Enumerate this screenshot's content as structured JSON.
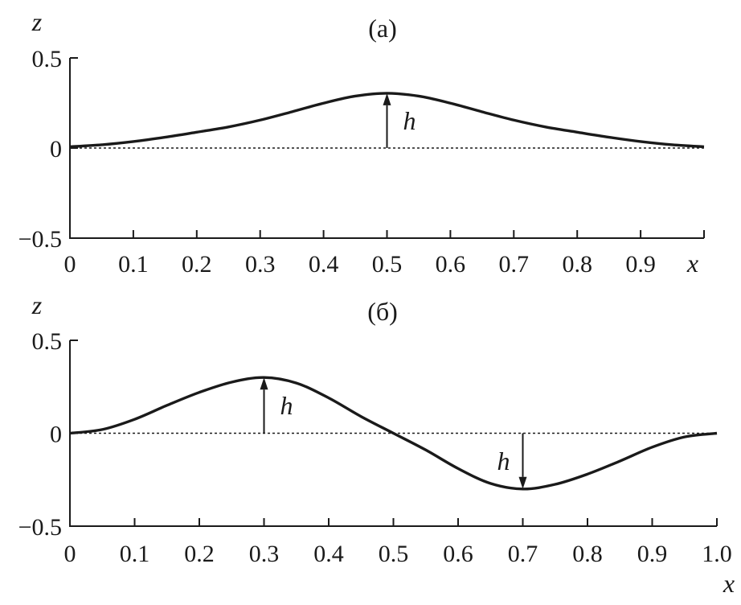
{
  "chart_data": [
    {
      "type": "line",
      "title": "(а)",
      "ylabel": "z",
      "xlabel": "x",
      "xlim": [
        0,
        1.0
      ],
      "ylim": [
        -0.5,
        0.5
      ],
      "x_ticks": [
        0,
        0.1,
        0.2,
        0.3,
        0.4,
        0.5,
        0.6,
        0.7,
        0.8,
        0.9
      ],
      "x_tick_labels": [
        "0",
        "0.1",
        "0.2",
        "0.3",
        "0.4",
        "0.5",
        "0.6",
        "0.7",
        "0.8",
        "0.9"
      ],
      "y_ticks": [
        0.5,
        0,
        -0.5
      ],
      "y_tick_labels": [
        "0.5",
        "0",
        "−0.5"
      ],
      "reference_line": {
        "y": 0,
        "style": "dashed"
      },
      "series": [
        {
          "x": [
            0,
            0.05,
            0.1,
            0.15,
            0.2,
            0.25,
            0.3,
            0.35,
            0.4,
            0.45,
            0.5,
            0.55,
            0.6,
            0.65,
            0.7,
            0.75,
            0.8,
            0.85,
            0.9,
            0.95,
            1.0
          ],
          "y": [
            0.007,
            0.018,
            0.036,
            0.06,
            0.088,
            0.117,
            0.155,
            0.201,
            0.249,
            0.288,
            0.304,
            0.288,
            0.249,
            0.201,
            0.155,
            0.117,
            0.088,
            0.06,
            0.036,
            0.018,
            0.007
          ]
        }
      ],
      "annotations": [
        {
          "label": "h",
          "x": 0.5,
          "from_y": 0,
          "to_y": 0.304
        }
      ]
    },
    {
      "type": "line",
      "title": "(б)",
      "ylabel": "z",
      "xlabel": "x",
      "xlim": [
        0,
        1.0
      ],
      "ylim": [
        -0.5,
        0.5
      ],
      "x_ticks": [
        0,
        0.1,
        0.2,
        0.3,
        0.4,
        0.5,
        0.6,
        0.7,
        0.8,
        0.9,
        1.0
      ],
      "x_tick_labels": [
        "0",
        "0.1",
        "0.2",
        "0.3",
        "0.4",
        "0.5",
        "0.6",
        "0.7",
        "0.8",
        "0.9",
        "1.0"
      ],
      "y_ticks": [
        0.5,
        0,
        -0.5
      ],
      "y_tick_labels": [
        "0.5",
        "0",
        "−0.5"
      ],
      "reference_line": {
        "y": 0,
        "style": "dashed"
      },
      "series": [
        {
          "x": [
            0,
            0.05,
            0.1,
            0.15,
            0.2,
            0.25,
            0.3,
            0.35,
            0.4,
            0.45,
            0.5,
            0.55,
            0.6,
            0.65,
            0.7,
            0.75,
            0.8,
            0.85,
            0.9,
            0.95,
            1.0
          ],
          "y": [
            0,
            0.02,
            0.075,
            0.15,
            0.22,
            0.275,
            0.3,
            0.27,
            0.19,
            0.09,
            0,
            -0.09,
            -0.19,
            -0.27,
            -0.3,
            -0.275,
            -0.22,
            -0.15,
            -0.075,
            -0.02,
            0
          ]
        }
      ],
      "annotations": [
        {
          "label": "h",
          "x": 0.3,
          "from_y": 0,
          "to_y": 0.3
        },
        {
          "label": "h",
          "x": 0.7,
          "from_y": 0,
          "to_y": -0.3
        }
      ]
    }
  ]
}
